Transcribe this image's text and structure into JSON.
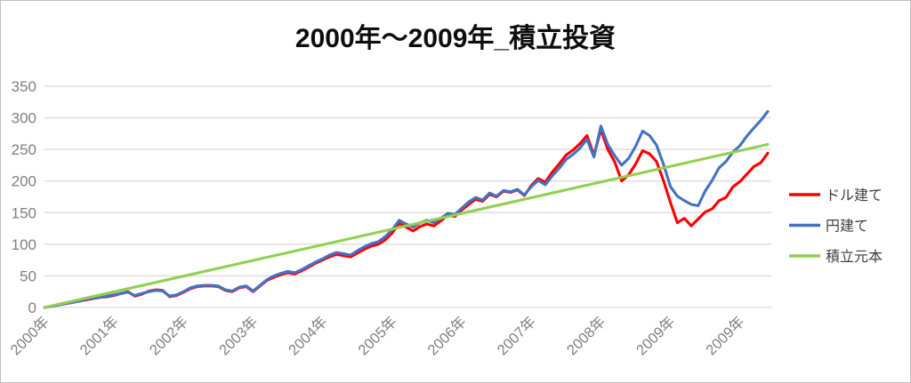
{
  "chart_data": {
    "type": "line",
    "title": "2000年～2009年_積立投資",
    "xlabel": "",
    "ylabel": "",
    "ylim": [
      0,
      350
    ],
    "y_ticks": [
      0,
      50,
      100,
      150,
      200,
      250,
      300,
      350
    ],
    "x_tick_labels": [
      "2000年",
      "2001年",
      "2002年",
      "2003年",
      "2004年",
      "2005年",
      "2006年",
      "2007年",
      "2008年",
      "2009年",
      "2009年"
    ],
    "x_tick_positions": [
      0,
      1,
      2,
      3,
      4,
      5,
      6,
      7,
      8,
      9,
      10
    ],
    "x_range": [
      0,
      10.4
    ],
    "grid": "horizontal",
    "legend_position": "right",
    "colors": {
      "gridline": "#d9d9d9",
      "axis_label": "#808080",
      "legend_text": "#404040",
      "title": "#0d0d0d",
      "figure_border": "#bfbfbf",
      "background": "#ffffff"
    },
    "series": [
      {
        "name": "ドル建て",
        "slug": "dollar",
        "color": "#ff0000",
        "t_start": 0,
        "t_step": 0.1,
        "values": [
          0,
          2,
          4,
          6,
          8,
          10,
          12,
          14,
          16,
          17,
          19,
          22,
          25,
          18,
          21,
          26,
          28,
          27,
          17,
          19,
          24,
          30,
          33,
          34,
          34,
          33,
          27,
          25,
          31,
          33,
          25,
          34,
          43,
          48,
          52,
          55,
          53,
          58,
          64,
          70,
          75,
          80,
          84,
          82,
          80,
          86,
          92,
          97,
          100,
          107,
          118,
          133,
          127,
          121,
          128,
          132,
          129,
          137,
          146,
          144,
          154,
          163,
          171,
          168,
          179,
          175,
          184,
          182,
          186,
          177,
          193,
          204,
          198,
          214,
          227,
          241,
          249,
          259,
          272,
          241,
          281,
          250,
          230,
          200,
          210,
          227,
          248,
          243,
          231,
          201,
          166,
          134,
          141,
          129,
          140,
          151,
          156,
          169,
          174,
          191,
          199,
          211,
          223,
          229,
          244
        ]
      },
      {
        "name": "円建て",
        "slug": "yen",
        "color": "#4472c4",
        "t_start": 0,
        "t_step": 0.1,
        "values": [
          0,
          2,
          4,
          6,
          8,
          10,
          13,
          15,
          16,
          18,
          20,
          22,
          24,
          19,
          22,
          25,
          27,
          26,
          18,
          20,
          25,
          31,
          34,
          35,
          35,
          34,
          28,
          26,
          32,
          34,
          26,
          35,
          44,
          50,
          54,
          57,
          55,
          60,
          66,
          72,
          77,
          83,
          87,
          85,
          83,
          90,
          96,
          101,
          104,
          112,
          123,
          138,
          132,
          127,
          134,
          138,
          134,
          141,
          149,
          147,
          157,
          167,
          174,
          170,
          181,
          176,
          185,
          183,
          187,
          178,
          191,
          201,
          194,
          208,
          220,
          234,
          242,
          252,
          266,
          238,
          287,
          258,
          240,
          225,
          236,
          255,
          279,
          272,
          257,
          227,
          191,
          176,
          169,
          163,
          161,
          184,
          201,
          221,
          231,
          246,
          256,
          271,
          284,
          296,
          310
        ]
      },
      {
        "name": "積立元本",
        "slug": "principal",
        "color": "#92d050",
        "points": [
          [
            0,
            0
          ],
          [
            10.4,
            258
          ]
        ]
      }
    ]
  }
}
